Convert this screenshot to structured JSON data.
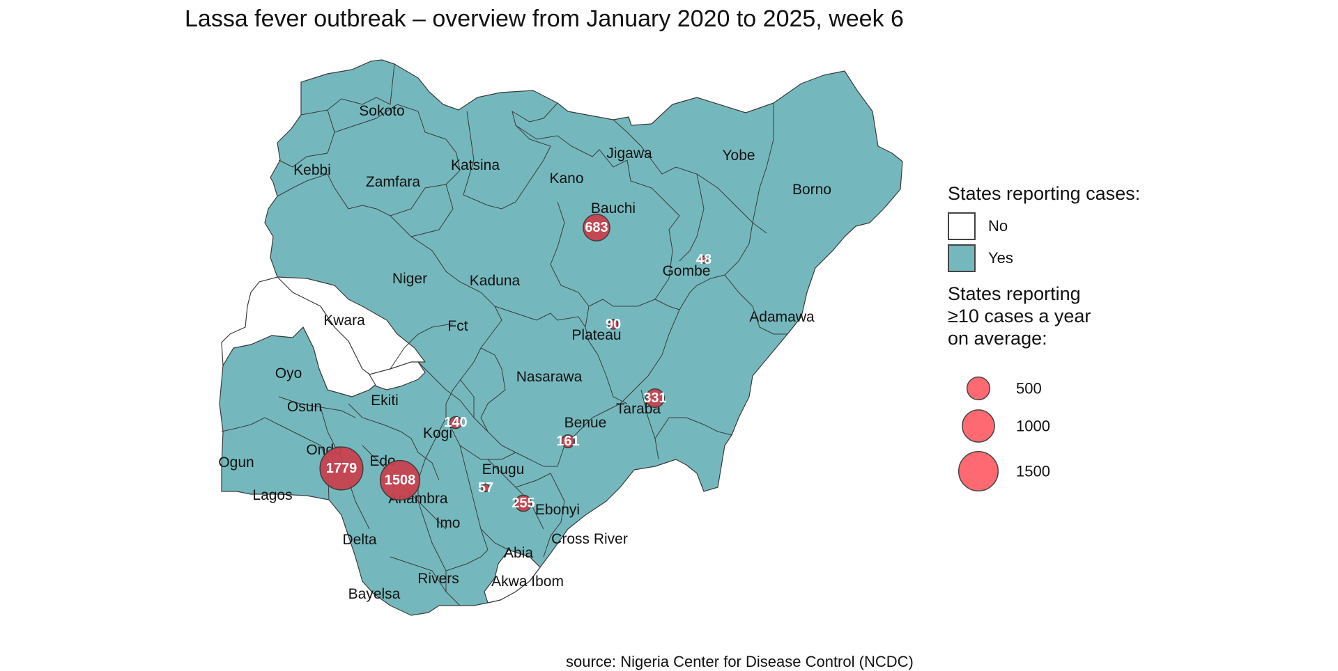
{
  "title": "Lassa fever outbreak – overview from January 2020 to 2025, week 6",
  "source": "source: Nigeria Center for Disease Control (NCDC)",
  "colors": {
    "reporting": "#74b8bd",
    "not_reporting": "#ffffff",
    "bubble": "#c9414f",
    "bubble_legend": "#ff6a72"
  },
  "legend": {
    "fill_title": "States reporting cases:",
    "fill_items": [
      {
        "label": "No",
        "color": "#ffffff"
      },
      {
        "label": "Yes",
        "color": "#74b8bd"
      }
    ],
    "size_title": "States reporting\n≥10 cases a year\non average:",
    "size_items": [
      {
        "value": 500,
        "label": "500"
      },
      {
        "value": 1000,
        "label": "1000"
      },
      {
        "value": 1500,
        "label": "1500"
      }
    ]
  },
  "states": [
    "Sokoto",
    "Kebbi",
    "Zamfara",
    "Katsina",
    "Kano",
    "Jigawa",
    "Yobe",
    "Borno",
    "Bauchi",
    "Gombe",
    "Niger",
    "Kaduna",
    "Kwara",
    "Fct",
    "Plateau",
    "Adamawa",
    "Oyo",
    "Osun",
    "Ekiti",
    "Nasarawa",
    "Taraba",
    "Kogi",
    "Benue",
    "Ondo",
    "Edo",
    "Ogun",
    "Lagos",
    "Enugu",
    "Anambra",
    "Ebonyi",
    "Imo",
    "Delta",
    "Cross River",
    "Abia",
    "Rivers",
    "Akwa Ibom",
    "Bayelsa"
  ],
  "cases": [
    {
      "state": "Ondo",
      "cases": 1779,
      "label": "1779"
    },
    {
      "state": "Edo",
      "cases": 1508,
      "label": "1508"
    },
    {
      "state": "Bauchi",
      "cases": 683,
      "label": "683"
    },
    {
      "state": "Taraba",
      "cases": 331,
      "label": "331"
    },
    {
      "state": "Ebonyi",
      "cases": 255,
      "label": "255"
    },
    {
      "state": "Benue",
      "cases": 161,
      "label": "161"
    },
    {
      "state": "Kogi",
      "cases": 140,
      "label": "140"
    },
    {
      "state": "Plateau",
      "cases": 90,
      "label": "90"
    },
    {
      "state": "Enugu",
      "cases": 57,
      "label": "57"
    },
    {
      "state": "Gombe",
      "cases": 48,
      "label": "48"
    }
  ]
}
